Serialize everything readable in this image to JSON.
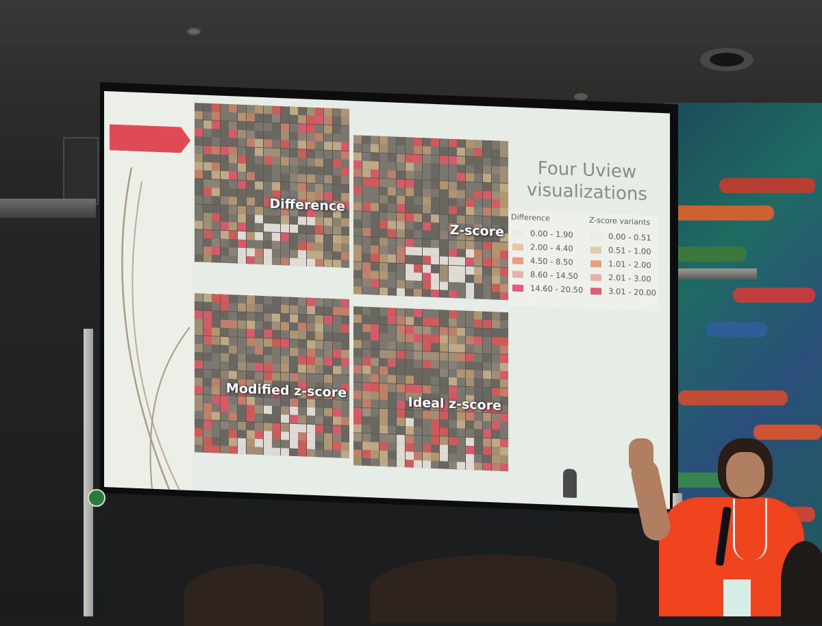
{
  "slide": {
    "title": "Four Uview visualizations",
    "panels": [
      {
        "label": "Difference"
      },
      {
        "label": "Z-score"
      },
      {
        "label": "Modified z-score"
      },
      {
        "label": "Ideal z-score"
      }
    ],
    "legend": {
      "difference": {
        "heading": "Difference",
        "entries": [
          {
            "range": "0.00 - 1.90",
            "color": "#ebebe6"
          },
          {
            "range": "2.00 - 4.40",
            "color": "#e3c9a0"
          },
          {
            "range": "4.50 - 8.50",
            "color": "#e99a80"
          },
          {
            "range": "8.60 - 14.50",
            "color": "#e3b3ab"
          },
          {
            "range": "14.60 - 20.50",
            "color": "#e35d78"
          }
        ]
      },
      "zscore": {
        "heading": "Z-score variants",
        "entries": [
          {
            "range": "0.00 - 0.51",
            "color": "#ebebe6"
          },
          {
            "range": "0.51 - 1.00",
            "color": "#dccfa8"
          },
          {
            "range": "1.01 - 2.00",
            "color": "#e7a07e"
          },
          {
            "range": "2.01 - 3.00",
            "color": "#e3b3ab"
          },
          {
            "range": "3.01 - 20.00",
            "color": "#e35d78"
          }
        ]
      }
    }
  }
}
